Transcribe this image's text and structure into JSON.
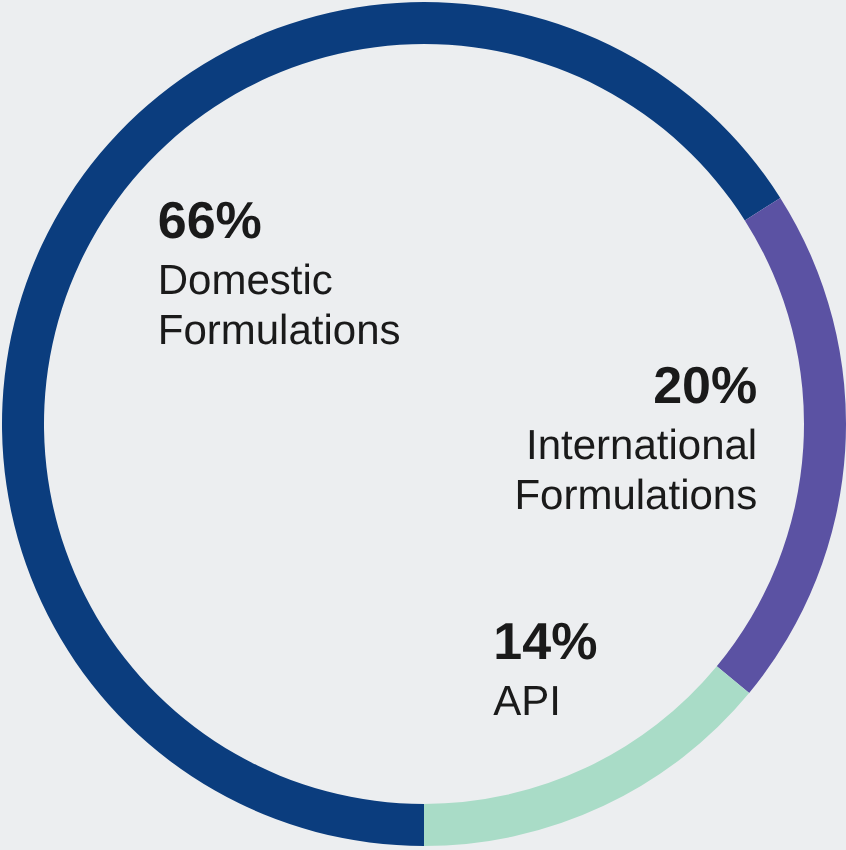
{
  "chart_data": {
    "type": "donut",
    "categories": [
      "Domestic Formulations",
      "International Formulations",
      "API"
    ],
    "values": [
      66,
      20,
      14
    ],
    "value_labels": [
      "66%",
      "20%",
      "14%"
    ],
    "colors": [
      "#0b3d7e",
      "#5b52a3",
      "#a9dcc7"
    ]
  }
}
